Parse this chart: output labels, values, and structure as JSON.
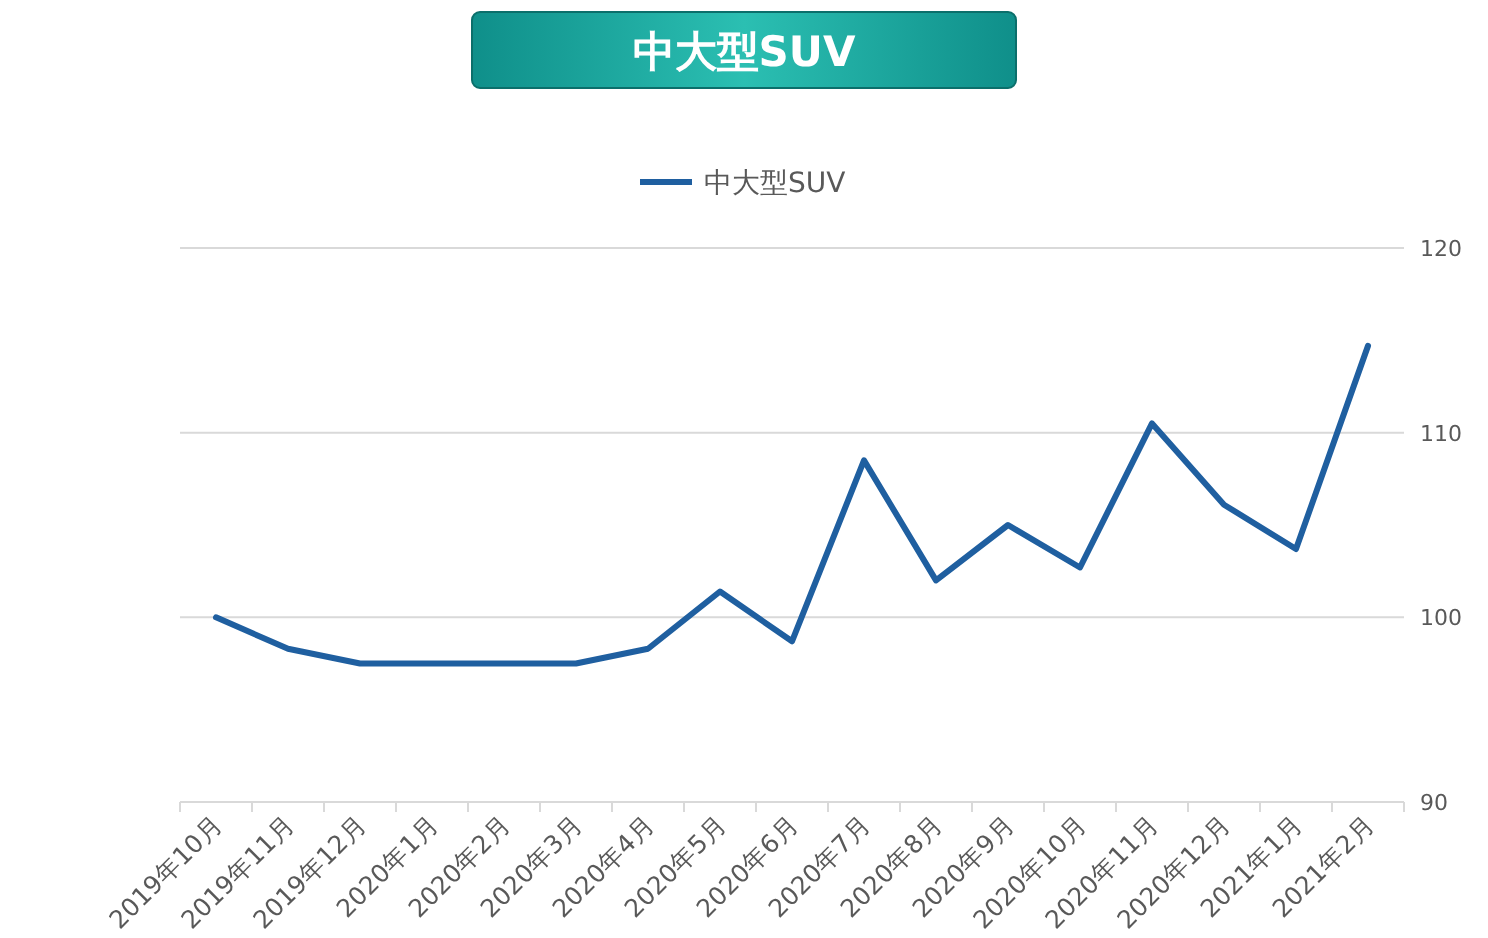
{
  "chart_data": {
    "type": "line",
    "title": "中大型SUV",
    "categories": [
      "2019年10月",
      "2019年11月",
      "2019年12月",
      "2020年1月",
      "2020年2月",
      "2020年3月",
      "2020年4月",
      "2020年5月",
      "2020年6月",
      "2020年7月",
      "2020年8月",
      "2020年9月",
      "2020年10月",
      "2020年11月",
      "2020年12月",
      "2021年1月",
      "2021年2月"
    ],
    "series": [
      {
        "name": "中大型SUV",
        "color": "#1f5fa0",
        "axis": "y2",
        "values": [
          100.0,
          98.3,
          97.5,
          97.5,
          97.5,
          97.5,
          98.3,
          101.4,
          98.7,
          108.5,
          102.0,
          105.0,
          102.7,
          110.5,
          106.1,
          103.7,
          114.7
        ]
      }
    ],
    "y2lim": [
      90,
      120
    ],
    "y2ticks": [
      90,
      100,
      110,
      120
    ],
    "grid": "y",
    "legend": "top",
    "marker": "none",
    "line_style": "solid"
  }
}
